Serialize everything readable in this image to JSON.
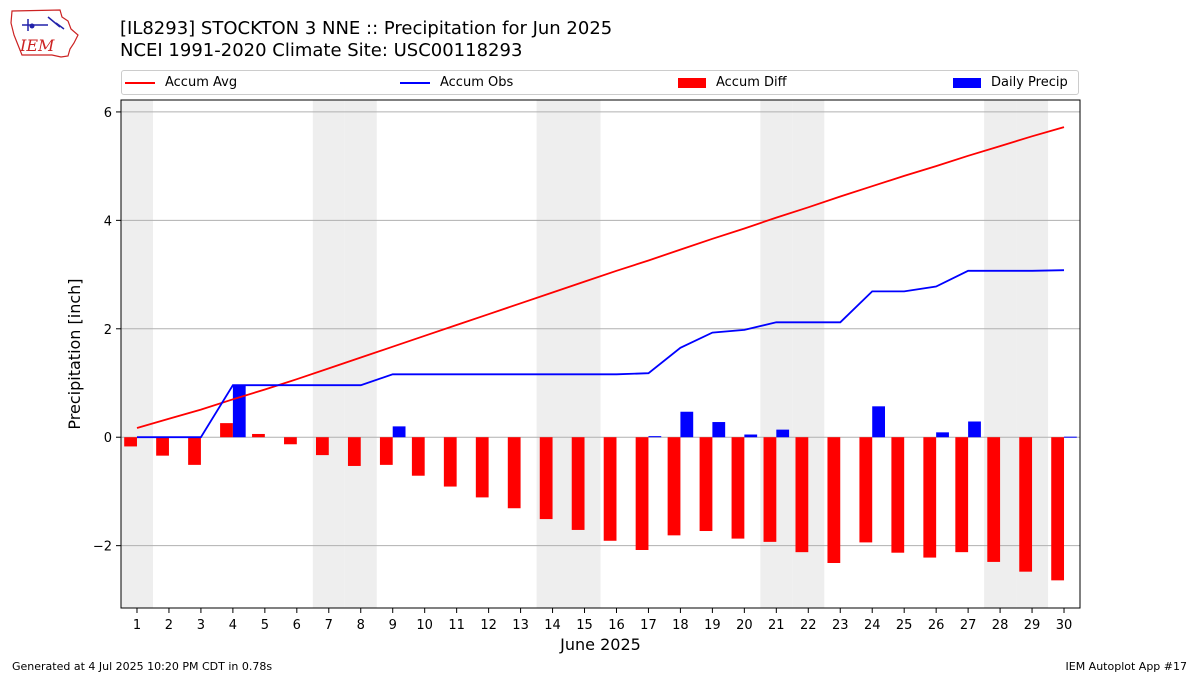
{
  "title_line1": "[IL8293] STOCKTON 3 NNE :: Precipitation for Jun 2025",
  "title_line2": "NCEI 1991-2020 Climate Site: USC00118293",
  "logo_text": "IEM",
  "footer_left": "Generated at 4 Jul 2025 10:20 PM CDT in 0.78s",
  "footer_right": "IEM Autoplot App #17",
  "colors": {
    "accum_avg": "#ff0000",
    "accum_obs": "#0000ff",
    "accum_diff": "#ff0000",
    "daily_precip": "#0000ff",
    "weekend_shade": "#eeeeee",
    "grid": "#b0b0b0"
  },
  "chart_data": {
    "type": "bar",
    "xlabel": "June 2025",
    "ylabel": "Precipitation [inch]",
    "ylim": [
      -3.15,
      6.22
    ],
    "xlim": [
      0.5,
      30.5
    ],
    "yticks": [
      -2,
      0,
      2,
      4,
      6
    ],
    "ytick_labels": [
      "−2",
      "0",
      "2",
      "4",
      "6"
    ],
    "grid": "horizontal",
    "legend_position": "top",
    "categories": [
      "1",
      "2",
      "3",
      "4",
      "5",
      "6",
      "7",
      "8",
      "9",
      "10",
      "11",
      "12",
      "13",
      "14",
      "15",
      "16",
      "17",
      "18",
      "19",
      "20",
      "21",
      "22",
      "23",
      "24",
      "25",
      "26",
      "27",
      "28",
      "29",
      "30"
    ],
    "weekend_days": [
      1,
      7,
      8,
      14,
      15,
      21,
      22,
      28,
      29
    ],
    "series": [
      {
        "name": "Accum Avg",
        "kind": "line",
        "color": "#ff0000",
        "values": [
          0.17,
          0.34,
          0.51,
          0.7,
          0.88,
          1.07,
          1.27,
          1.47,
          1.67,
          1.87,
          2.07,
          2.27,
          2.47,
          2.67,
          2.87,
          3.07,
          3.26,
          3.46,
          3.66,
          3.85,
          4.05,
          4.24,
          4.44,
          4.63,
          4.82,
          5.0,
          5.19,
          5.37,
          5.55,
          5.72
        ]
      },
      {
        "name": "Accum Obs",
        "kind": "line",
        "color": "#0000ff",
        "values": [
          0.0,
          0.0,
          0.0,
          0.96,
          0.96,
          0.96,
          0.96,
          0.96,
          1.16,
          1.16,
          1.16,
          1.16,
          1.16,
          1.16,
          1.16,
          1.16,
          1.18,
          1.65,
          1.93,
          1.98,
          2.12,
          2.12,
          2.12,
          2.69,
          2.69,
          2.78,
          3.07,
          3.07,
          3.07,
          3.08
        ]
      },
      {
        "name": "Accum Diff",
        "kind": "bar",
        "color": "#ff0000",
        "values": [
          -0.17,
          -0.34,
          -0.51,
          0.26,
          0.06,
          -0.13,
          -0.33,
          -0.53,
          -0.51,
          -0.71,
          -0.91,
          -1.11,
          -1.31,
          -1.51,
          -1.71,
          -1.91,
          -2.08,
          -1.81,
          -1.73,
          -1.87,
          -1.93,
          -2.12,
          -2.32,
          -1.94,
          -2.13,
          -2.22,
          -2.12,
          -2.3,
          -2.48,
          -2.64
        ]
      },
      {
        "name": "Daily Precip",
        "kind": "bar",
        "color": "#0000ff",
        "values": [
          0,
          0,
          0,
          0.96,
          0,
          0,
          0,
          0,
          0.2,
          0,
          0,
          0,
          0,
          0,
          0,
          0,
          0.02,
          0.47,
          0.28,
          0.05,
          0.14,
          0,
          0,
          0.57,
          0,
          0.09,
          0.29,
          0,
          0,
          0.01
        ]
      }
    ]
  }
}
